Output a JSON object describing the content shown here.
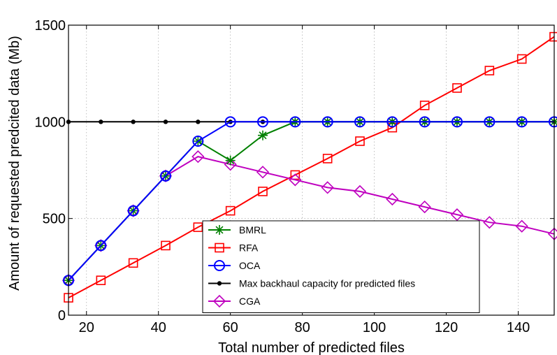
{
  "chart_data": {
    "type": "line",
    "xlabel": "Total number of predicted files",
    "ylabel": "Amount of requested predcited data (Mb)",
    "xlim": [
      15,
      150
    ],
    "ylim": [
      0,
      1500
    ],
    "xticks": [
      20,
      40,
      60,
      80,
      100,
      120,
      140
    ],
    "yticks": [
      0,
      500,
      1000,
      1500
    ],
    "grid": true,
    "legend_position": "bottom-center",
    "series": [
      {
        "name": "BMRL",
        "color": "#008000",
        "marker": "star",
        "x": [
          15,
          24,
          33,
          42,
          51,
          60,
          69,
          78,
          87,
          96,
          105,
          114,
          123,
          132,
          141,
          150
        ],
        "y": [
          180,
          360,
          540,
          720,
          900,
          800,
          930,
          1000,
          1000,
          1000,
          1000,
          1000,
          1000,
          1000,
          1000,
          1000
        ]
      },
      {
        "name": "RFA",
        "color": "#ff0000",
        "marker": "square",
        "x": [
          15,
          24,
          33,
          42,
          51,
          60,
          69,
          78,
          87,
          96,
          105,
          114,
          123,
          132,
          141,
          150
        ],
        "y": [
          90,
          180,
          270,
          360,
          455,
          540,
          640,
          725,
          810,
          900,
          970,
          1085,
          1175,
          1265,
          1325,
          1440
        ]
      },
      {
        "name": "OCA",
        "color": "#0000ff",
        "marker": "circle",
        "x": [
          15,
          24,
          33,
          42,
          51,
          60,
          69,
          78,
          87,
          96,
          105,
          114,
          123,
          132,
          141,
          150
        ],
        "y": [
          180,
          360,
          540,
          720,
          900,
          1000,
          1000,
          1000,
          1000,
          1000,
          1000,
          1000,
          1000,
          1000,
          1000,
          1000
        ]
      },
      {
        "name": "Max backhaul capacity for predicted files",
        "color": "#000000",
        "marker": "dot",
        "x": [
          15,
          24,
          33,
          42,
          51,
          60,
          69,
          78,
          87,
          96,
          105,
          114,
          123,
          132,
          141,
          150
        ],
        "y": [
          1000,
          1000,
          1000,
          1000,
          1000,
          1000,
          1000,
          1000,
          1000,
          1000,
          1000,
          1000,
          1000,
          1000,
          1000,
          1000
        ]
      },
      {
        "name": "CGA",
        "color": "#bf00bf",
        "marker": "diamond",
        "x": [
          15,
          24,
          33,
          42,
          51,
          60,
          69,
          78,
          87,
          96,
          105,
          114,
          123,
          132,
          141,
          150
        ],
        "y": [
          180,
          360,
          540,
          720,
          820,
          780,
          740,
          700,
          660,
          640,
          600,
          560,
          520,
          480,
          460,
          420
        ]
      }
    ],
    "draw_order": [
      1,
      4,
      3,
      0,
      2
    ]
  }
}
